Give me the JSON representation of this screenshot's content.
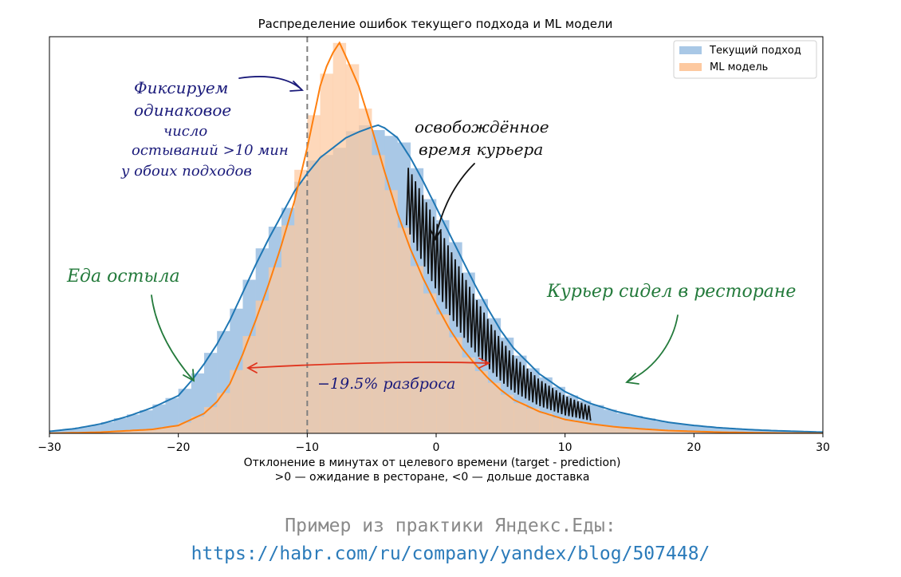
{
  "chart_data": {
    "type": "histogram",
    "title": "Распределение ошибок текущего подхода и ML модели",
    "xlabel": "Отклонение в минутах от целевого времени (target - prediction)",
    "xlabel_line2": ">0 — ожидание в ресторане, <0 — дольше доставка",
    "xlim": [
      -30,
      30
    ],
    "ylim": [
      0,
      1.0
    ],
    "y_ticks_visible": false,
    "grid": false,
    "x_ticks": [
      -30,
      -20,
      -10,
      0,
      10,
      20,
      30
    ],
    "x_tick_labels": [
      "−30",
      "−20",
      "−10",
      "0",
      "10",
      "20",
      "30"
    ],
    "legend": {
      "placement": "top-right",
      "entries": [
        "Текущий подход",
        "ML модель"
      ]
    },
    "series": [
      {
        "name": "Текущий подход",
        "color": "#1f77b4",
        "fill": "#a9c8e6",
        "x": [
          -30,
          -28,
          -26,
          -24,
          -22,
          -20,
          -19,
          -18,
          -17,
          -16,
          -15,
          -14,
          -13,
          -12,
          -11,
          -10,
          -9,
          -8,
          -7,
          -6,
          -5,
          -4.5,
          -4,
          -3,
          -2,
          -1,
          0,
          1,
          2,
          3,
          4,
          5,
          6,
          8,
          10,
          12,
          14,
          16,
          18,
          20,
          22,
          24,
          26,
          28,
          30
        ],
        "values": [
          0.005,
          0.012,
          0.024,
          0.042,
          0.065,
          0.095,
          0.132,
          0.175,
          0.225,
          0.285,
          0.355,
          0.425,
          0.49,
          0.55,
          0.61,
          0.655,
          0.695,
          0.72,
          0.745,
          0.76,
          0.772,
          0.777,
          0.77,
          0.745,
          0.695,
          0.635,
          0.57,
          0.505,
          0.44,
          0.375,
          0.315,
          0.26,
          0.215,
          0.15,
          0.105,
          0.075,
          0.055,
          0.04,
          0.028,
          0.02,
          0.014,
          0.01,
          0.007,
          0.005,
          0.003
        ]
      },
      {
        "name": "ML модель",
        "color": "#ff7f0e",
        "fill": "#fdc9a0",
        "x": [
          -30,
          -26,
          -22,
          -20,
          -18,
          -17,
          -16,
          -15,
          -14,
          -13,
          -12,
          -11,
          -10,
          -9,
          -8.5,
          -8,
          -7.5,
          -7,
          -6,
          -5,
          -4,
          -3,
          -2,
          -1,
          0,
          1,
          2,
          3,
          4,
          5,
          6,
          8,
          10,
          12,
          14,
          16,
          18,
          20,
          22,
          26,
          30
        ],
        "values": [
          0.0,
          0.003,
          0.01,
          0.02,
          0.05,
          0.08,
          0.125,
          0.2,
          0.285,
          0.375,
          0.475,
          0.585,
          0.72,
          0.875,
          0.925,
          0.96,
          0.985,
          0.95,
          0.875,
          0.77,
          0.66,
          0.555,
          0.465,
          0.39,
          0.325,
          0.265,
          0.215,
          0.175,
          0.14,
          0.11,
          0.085,
          0.055,
          0.035,
          0.024,
          0.016,
          0.011,
          0.007,
          0.005,
          0.003,
          0.001,
          0.0
        ]
      }
    ],
    "vline": {
      "x": -10,
      "style": "dashed",
      "color": "#7f7f7f"
    },
    "annotations": {
      "fix": [
        "Фиксируем",
        "одинаковое",
        "число",
        "остываний >10 мин",
        "у обоих подходов"
      ],
      "freed": [
        "освобождённое",
        "время курьера"
      ],
      "cold": "Еда остыла",
      "sat": "Курьер сидел в ресторане",
      "spread": "−19.5% разброса"
    },
    "annotation_colors": {
      "blue": "#1a1a7a",
      "green": "#237a3b",
      "black": "#111111",
      "red": "#e0341e"
    }
  },
  "caption": {
    "line1": "Пример из практики Яндекс.Еды:",
    "line2": "https://habr.com/ru/company/yandex/blog/507448/"
  }
}
